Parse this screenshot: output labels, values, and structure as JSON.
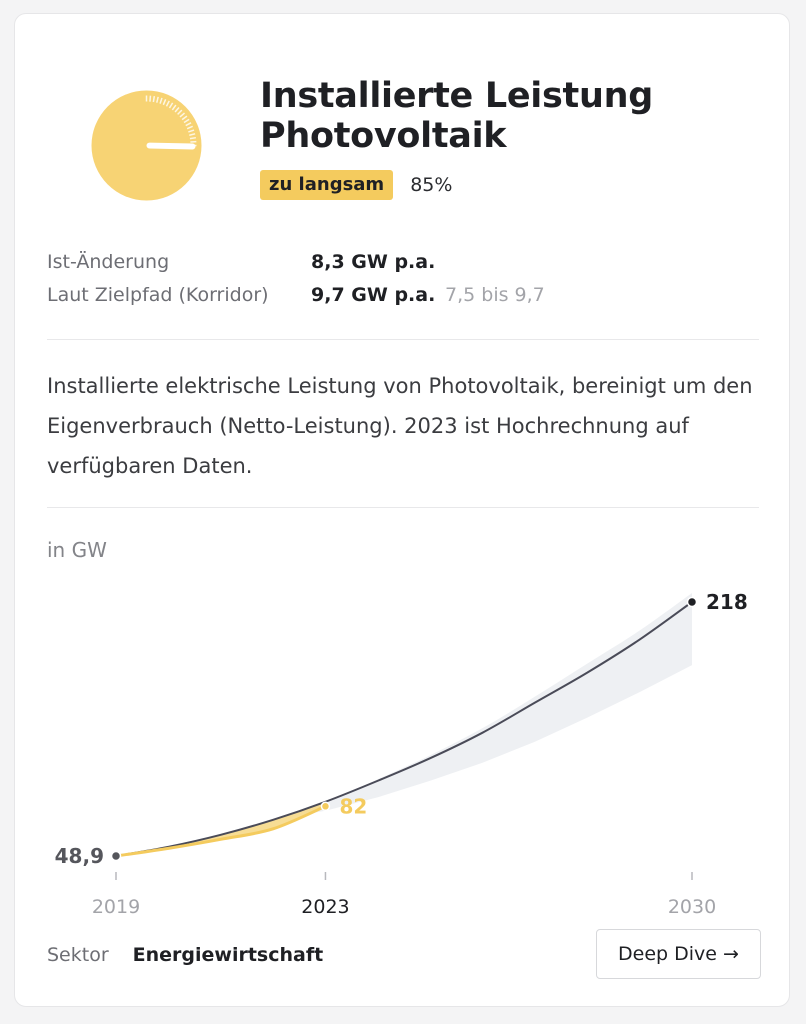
{
  "title": "Installierte Leistung Photovoltaik",
  "status": {
    "badge": "zu langsam",
    "percent_label": "85%",
    "percent_value": 85
  },
  "metrics": [
    {
      "label": "Ist-Änderung",
      "value": "8,3 GW p.a.",
      "range": ""
    },
    {
      "label": "Laut Zielpfad (Korridor)",
      "value": "9,7 GW p.a.",
      "range": "7,5 bis 9,7"
    }
  ],
  "description": "Installierte elektrische Leistung von Photovoltaik, bereinigt um den Eigenverbrauch (Netto-Leistung). 2023 ist Hochrechnung auf verfügbaren Daten.",
  "unit_label": "in GW",
  "colors": {
    "accent": "#f4cb5e",
    "path_line": "#4a4b58",
    "corridor": "#eef0f3",
    "text_dark": "#1f2024",
    "text_muted": "#6d6e74"
  },
  "chart_data": {
    "type": "line",
    "x_ticks": [
      "2019",
      "2023",
      "2030"
    ],
    "xlim": [
      2019,
      2030
    ],
    "ylim": [
      48.9,
      218
    ],
    "series": [
      {
        "role": "target_path",
        "x": [
          2019,
          2020,
          2021,
          2022,
          2023,
          2024,
          2025,
          2026,
          2027,
          2028,
          2029,
          2030
        ],
        "y": [
          48.9,
          55,
          63,
          73,
          85,
          99,
          114,
          131,
          151,
          171,
          193,
          218
        ]
      },
      {
        "role": "corridor_upper",
        "x": [
          2019,
          2020,
          2021,
          2022,
          2023,
          2024,
          2025,
          2026,
          2027,
          2028,
          2029,
          2030
        ],
        "y": [
          48.9,
          55,
          63,
          73,
          85,
          100,
          116,
          134,
          155,
          177,
          199,
          224
        ]
      },
      {
        "role": "corridor_lower",
        "x": [
          2019,
          2020,
          2021,
          2022,
          2023,
          2024,
          2025,
          2026,
          2027,
          2028,
          2029,
          2030
        ],
        "y": [
          48.9,
          55,
          63,
          73,
          79,
          88,
          99,
          111,
          125,
          141,
          158,
          176
        ]
      },
      {
        "role": "actual",
        "x": [
          2019,
          2020,
          2021,
          2022,
          2023
        ],
        "y": [
          48.9,
          54,
          60,
          67,
          82
        ]
      }
    ],
    "annotations": [
      {
        "x": 2019,
        "y": 48.9,
        "label": "48,9"
      },
      {
        "x": 2023,
        "y": 82,
        "label": "82"
      },
      {
        "x": 2030,
        "y": 218,
        "label": "218"
      }
    ]
  },
  "footer": {
    "sector_label": "Sektor",
    "sector_value": "Energiewirtschaft",
    "deep_dive_label": "Deep Dive →"
  }
}
